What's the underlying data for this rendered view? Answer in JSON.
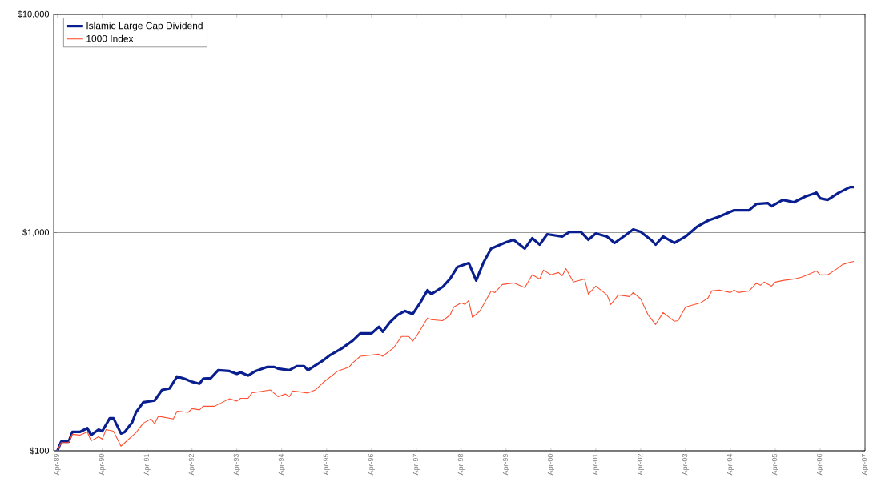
{
  "chart_data": {
    "type": "line",
    "log": "y",
    "grid": "y",
    "legend": "top left",
    "xlim": [
      "1989-03",
      "2007-04"
    ],
    "ylim": [
      100,
      10000
    ],
    "xticks": [
      {
        "value": "1989-04",
        "label": "Apr-89"
      },
      {
        "value": "1990-04",
        "label": "Apr-90"
      },
      {
        "value": "1991-04",
        "label": "Apr-91"
      },
      {
        "value": "1992-04",
        "label": "Apr-92"
      },
      {
        "value": "1993-04",
        "label": "Apr-93"
      },
      {
        "value": "1994-04",
        "label": "Apr-94"
      },
      {
        "value": "1995-04",
        "label": "Apr-95"
      },
      {
        "value": "1996-04",
        "label": "Apr-96"
      },
      {
        "value": "1997-04",
        "label": "Apr-97"
      },
      {
        "value": "1998-04",
        "label": "Apr-98"
      },
      {
        "value": "1999-04",
        "label": "Apr-99"
      },
      {
        "value": "2000-04",
        "label": "Apr-00"
      },
      {
        "value": "2001-04",
        "label": "Apr-01"
      },
      {
        "value": "2002-04",
        "label": "Apr-02"
      },
      {
        "value": "2003-04",
        "label": "Apr-03"
      },
      {
        "value": "2004-04",
        "label": "Apr-04"
      },
      {
        "value": "2005-04",
        "label": "Apr-05"
      },
      {
        "value": "2006-04",
        "label": "Apr-06"
      },
      {
        "value": "2007-04",
        "label": "Apr-07"
      }
    ],
    "yticks": [
      {
        "value": 100,
        "label": "$100"
      },
      {
        "value": 1000,
        "label": "$1,000"
      },
      {
        "value": 10000,
        "label": "$10,000"
      }
    ],
    "series": [
      {
        "name": "Islamic Large Cap Dividend",
        "color": "#0a1f8f",
        "x": [
          "1989-04",
          "1989-05",
          "1989-07",
          "1989-08",
          "1989-10",
          "1989-12",
          "1990-01",
          "1990-03",
          "1990-04",
          "1990-06",
          "1990-07",
          "1990-09",
          "1990-10",
          "1990-12",
          "1991-01",
          "1991-03",
          "1991-06",
          "1991-08",
          "1991-10",
          "1991-12",
          "1992-02",
          "1992-04",
          "1992-06",
          "1992-07",
          "1992-09",
          "1992-11",
          "1993-02",
          "1993-04",
          "1993-05",
          "1993-07",
          "1993-09",
          "1993-12",
          "1994-02",
          "1994-03",
          "1994-06",
          "1994-08",
          "1994-10",
          "1994-11",
          "1995-03",
          "1995-05",
          "1995-08",
          "1995-11",
          "1996-01",
          "1996-04",
          "1996-06",
          "1996-07",
          "1996-09",
          "1996-11",
          "1997-01",
          "1997-03",
          "1997-05",
          "1997-07",
          "1997-08",
          "1997-11",
          "1998-01",
          "1998-03",
          "1998-06",
          "1998-08",
          "1998-10",
          "1998-12",
          "1999-04",
          "1999-06",
          "1999-09",
          "1999-11",
          "2000-01",
          "2000-03",
          "2000-07",
          "2000-09",
          "2000-12",
          "2001-02",
          "2001-04",
          "2001-07",
          "2001-09",
          "2001-12",
          "2002-02",
          "2002-04",
          "2002-07",
          "2002-08",
          "2002-10",
          "2003-01",
          "2003-04",
          "2003-07",
          "2003-10",
          "2004-01",
          "2004-05",
          "2004-09",
          "2004-11",
          "2005-02",
          "2005-03",
          "2005-06",
          "2005-09",
          "2005-12",
          "2006-03",
          "2006-04",
          "2006-06",
          "2006-09",
          "2006-12",
          "2007-01"
        ],
        "values": [
          100,
          110,
          110,
          122,
          122,
          127,
          118,
          125,
          123,
          141,
          141,
          120,
          122,
          135,
          150,
          167,
          170,
          190,
          193,
          219,
          214,
          207,
          203,
          214,
          215,
          234,
          232,
          225,
          229,
          221,
          232,
          242,
          242,
          238,
          234,
          244,
          244,
          234,
          259,
          275,
          294,
          320,
          345,
          345,
          370,
          351,
          389,
          419,
          437,
          423,
          476,
          545,
          522,
          563,
          613,
          696,
          726,
          603,
          732,
          845,
          904,
          927,
          845,
          943,
          881,
          983,
          959,
          1008,
          1008,
          927,
          991,
          959,
          896,
          975,
          1034,
          1008,
          919,
          881,
          959,
          896,
          959,
          1061,
          1135,
          1184,
          1266,
          1266,
          1355,
          1366,
          1321,
          1413,
          1378,
          1462,
          1524,
          1437,
          1413,
          1524,
          1617,
          1617
        ]
      },
      {
        "name": "1000 Index",
        "color": "#ff5030",
        "x": [
          "1989-04",
          "1989-05",
          "1989-07",
          "1989-08",
          "1989-10",
          "1989-12",
          "1990-01",
          "1990-03",
          "1990-04",
          "1990-05",
          "1990-07",
          "1990-09",
          "1991-01",
          "1991-03",
          "1991-05",
          "1991-06",
          "1991-07",
          "1991-11",
          "1991-12",
          "1992-03",
          "1992-04",
          "1992-06",
          "1992-07",
          "1992-10",
          "1993-02",
          "1993-04",
          "1993-05",
          "1993-07",
          "1993-08",
          "1994-01",
          "1994-03",
          "1994-05",
          "1994-06",
          "1994-07",
          "1994-11",
          "1995-01",
          "1995-03",
          "1995-07",
          "1995-10",
          "1995-11",
          "1996-01",
          "1996-06",
          "1996-07",
          "1996-10",
          "1996-11",
          "1996-12",
          "1997-02",
          "1997-03",
          "1997-04",
          "1997-07",
          "1997-08",
          "1997-11",
          "1998-01",
          "1998-02",
          "1998-04",
          "1998-05",
          "1998-06",
          "1998-07",
          "1998-09",
          "1998-12",
          "1999-01",
          "1999-03",
          "1999-06",
          "1999-09",
          "1999-11",
          "2000-01",
          "2000-02",
          "2000-04",
          "2000-06",
          "2000-07",
          "2000-08",
          "2000-10",
          "2001-01",
          "2001-02",
          "2001-04",
          "2001-07",
          "2001-08",
          "2001-10",
          "2002-01",
          "2002-02",
          "2002-04",
          "2002-05",
          "2002-06",
          "2002-08",
          "2002-10",
          "2003-01",
          "2003-02",
          "2003-04",
          "2003-08",
          "2003-10",
          "2003-11",
          "2004-01",
          "2004-04",
          "2004-05",
          "2004-06",
          "2004-09",
          "2004-11",
          "2004-12",
          "2005-01",
          "2005-03",
          "2005-04",
          "2005-06",
          "2005-09",
          "2005-11",
          "2006-01",
          "2006-03",
          "2006-04",
          "2006-06",
          "2006-08",
          "2006-10",
          "2006-12",
          "2007-01"
        ],
        "values": [
          100,
          109,
          109,
          119,
          118,
          122,
          111,
          116,
          113,
          125,
          123,
          105,
          121,
          134,
          140,
          133,
          144,
          140,
          152,
          150,
          156,
          154,
          160,
          160,
          173,
          169,
          174,
          174,
          184,
          190,
          177,
          182,
          177,
          188,
          184,
          190,
          205,
          232,
          242,
          253,
          271,
          277,
          271,
          297,
          315,
          334,
          334,
          318,
          334,
          406,
          399,
          395,
          419,
          456,
          476,
          468,
          488,
          409,
          437,
          540,
          531,
          578,
          588,
          559,
          640,
          613,
          673,
          640,
          656,
          634,
          684,
          593,
          613,
          522,
          568,
          518,
          468,
          518,
          509,
          531,
          497,
          456,
          419,
          379,
          430,
          392,
          395,
          456,
          476,
          501,
          540,
          545,
          531,
          545,
          531,
          540,
          588,
          573,
          593,
          568,
          593,
          603,
          613,
          624,
          645,
          667,
          640,
          640,
          673,
          714,
          732,
          738
        ]
      }
    ]
  }
}
